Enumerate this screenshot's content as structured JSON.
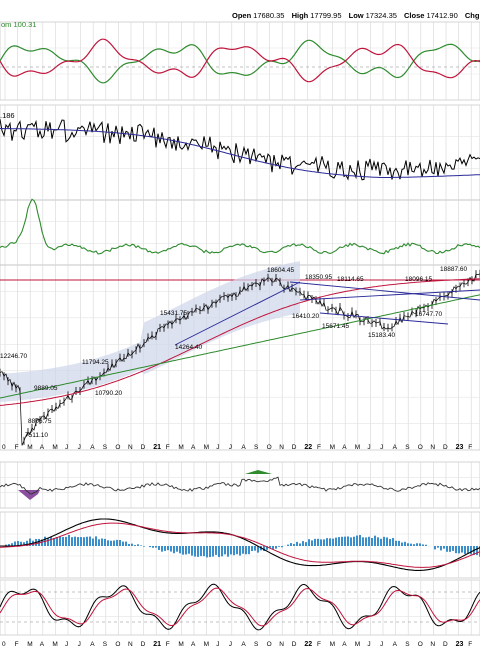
{
  "header": {
    "open_label": "Open",
    "open": "17680.35",
    "high_label": "High",
    "high": "17799.95",
    "low_label": "Low",
    "low": "17324.35",
    "close_label": "Close",
    "close": "17412.90",
    "chg_label": "Chg"
  },
  "panel_labels": {
    "adx_value": "om 100.31",
    "relative_value": ".186"
  },
  "chart_data": {
    "type": "line",
    "x_ticks": [
      "0",
      "F",
      "M",
      "A",
      "M",
      "J",
      "J",
      "A",
      "S",
      "O",
      "N",
      "D",
      "21",
      "F",
      "M",
      "A",
      "M",
      "J",
      "J",
      "A",
      "S",
      "O",
      "N",
      "D",
      "22",
      "F",
      "M",
      "A",
      "M",
      "J",
      "J",
      "A",
      "S",
      "O",
      "N",
      "D",
      "23",
      "F"
    ],
    "bottom_ticks": [
      "0",
      "F",
      "M",
      "A",
      "M",
      "J",
      "J",
      "A",
      "S",
      "O",
      "N",
      "D",
      "21",
      "F",
      "M",
      "A",
      "M",
      "J",
      "J",
      "A",
      "S",
      "O",
      "N",
      "D",
      "22",
      "F",
      "M",
      "A",
      "M",
      "J",
      "J",
      "A",
      "S",
      "O",
      "N",
      "D",
      "23",
      "F"
    ],
    "price_annotations": [
      "12246.70",
      "9889.05",
      "8806.75",
      "7511.10",
      "10790.20",
      "11794.25",
      "15431.75",
      "14264.40",
      "18604.45",
      "16410.20",
      "18350.95",
      "15671.45",
      "18114.65",
      "15183.40",
      "18096.15",
      "16747.70",
      "18887.60"
    ],
    "series": [
      {
        "name": "price",
        "color": "#000000"
      },
      {
        "name": "sma50",
        "color": "#c0143c"
      },
      {
        "name": "sma200",
        "color": "#2e8b2e"
      },
      {
        "name": "trendline",
        "color": "#2a2a9a"
      }
    ],
    "indicators": [
      "DI lines",
      "relative strength",
      "ADX",
      "price",
      "RSI",
      "MACD",
      "stochastic"
    ],
    "colors": {
      "red": "#c0143c",
      "green": "#2e8b2e",
      "navy": "#2a2a9a",
      "blue_hist": "#3a8ecb",
      "purple_fill": "#8a4f9e",
      "band_fill": "#cfd6ea"
    }
  }
}
